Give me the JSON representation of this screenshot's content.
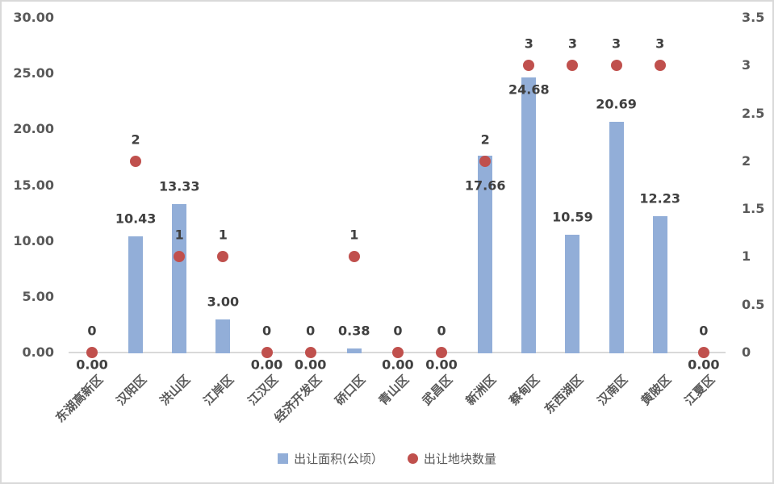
{
  "chart_data": {
    "type": "bar",
    "subtype": "combo-bar-scatter",
    "title": "",
    "categories": [
      "东湖高新区",
      "汉阳区",
      "洪山区",
      "江岸区",
      "江汉区",
      "经济开发区",
      "硚口区",
      "青山区",
      "武昌区",
      "新洲区",
      "蔡甸区",
      "东西湖区",
      "汉南区",
      "黄陂区",
      "江夏区"
    ],
    "series": [
      {
        "name": "出让面积(公顷）",
        "type": "bar",
        "axis": "left",
        "color": "#92AED8",
        "values": [
          0,
          10.43,
          13.33,
          3,
          0,
          0,
          0.38,
          0,
          0,
          17.66,
          24.68,
          10.59,
          20.69,
          12.23,
          0
        ],
        "data_labels": [
          "0.00",
          "10.43",
          "13.33",
          "3.00",
          "0.00",
          "0.00",
          "0.38",
          "0.00",
          "0.00",
          "17.66",
          "24.68",
          "10.59",
          "20.69",
          "12.23",
          "0.00"
        ]
      },
      {
        "name": "出让地块数量",
        "type": "scatter",
        "axis": "right",
        "color": "#C0504D",
        "values": [
          0,
          2,
          1,
          1,
          0,
          0,
          1,
          0,
          0,
          2,
          3,
          3,
          3,
          3,
          0
        ],
        "data_labels": [
          "0",
          "2",
          "1",
          "1",
          "0",
          "0",
          "1",
          "0",
          "0",
          "2",
          "3",
          "3",
          "3",
          "3",
          "0"
        ]
      }
    ],
    "left_axis": {
      "min": 0,
      "max": 30,
      "tick_step": 5,
      "ticks": [
        "0.00",
        "5.00",
        "10.00",
        "15.00",
        "20.00",
        "25.00",
        "30.00"
      ]
    },
    "right_axis": {
      "min": 0,
      "max": 3.5,
      "tick_step": 0.5,
      "ticks": [
        "0",
        "0.5",
        "1",
        "1.5",
        "2",
        "2.5",
        "3",
        "3.5"
      ]
    },
    "grid": false,
    "legend": {
      "position": "bottom",
      "items": [
        {
          "label": "出让面积(公顷）",
          "marker": "square",
          "color": "#92AED8"
        },
        {
          "label": "出让地块数量",
          "marker": "circle",
          "color": "#C0504D"
        }
      ]
    },
    "colors": {
      "data_label": "#404040",
      "axis_label": "#595959",
      "axis_line": "#D9D9D9",
      "background": "#FFFFFF",
      "border": "#D9D9D9"
    }
  }
}
